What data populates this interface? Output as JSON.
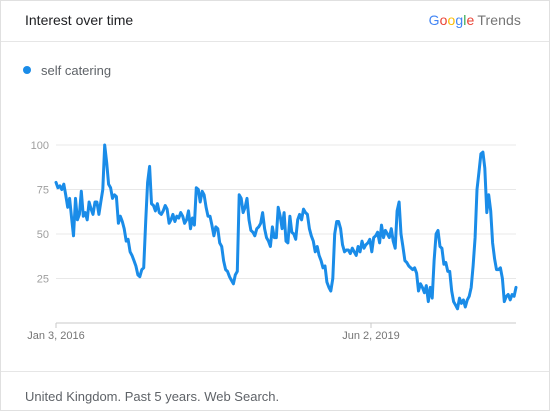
{
  "header": {
    "title": "Interest over time",
    "brand": {
      "letters": [
        {
          "ch": "G",
          "color": "#4285F4"
        },
        {
          "ch": "o",
          "color": "#EA4335"
        },
        {
          "ch": "o",
          "color": "#FBBC05"
        },
        {
          "ch": "g",
          "color": "#4285F4"
        },
        {
          "ch": "l",
          "color": "#34A853"
        },
        {
          "ch": "e",
          "color": "#EA4335"
        }
      ],
      "suffix": "Trends"
    }
  },
  "footer": {
    "text": "United Kingdom. Past 5 years. Web Search."
  },
  "chart_data": {
    "type": "line",
    "x_tick_labels": [
      "Jan 3, 2016",
      "Jun 2, 2019"
    ],
    "y_ticks": [
      25,
      50,
      75,
      100
    ],
    "ylim": [
      0,
      100
    ],
    "grid": true,
    "legend_position": "top-left",
    "series": [
      {
        "name": "self catering",
        "color": "#1a8ce8",
        "values": [
          79,
          76,
          77,
          75,
          78,
          72,
          65,
          70,
          59,
          49,
          70,
          58,
          61,
          74,
          60,
          62,
          58,
          68,
          64,
          61,
          68,
          68,
          61,
          68,
          75,
          100,
          90,
          78,
          76,
          70,
          72,
          71,
          56,
          60,
          57,
          53,
          46,
          47,
          40,
          38,
          35,
          32,
          27,
          26,
          30,
          31,
          57,
          79,
          88,
          67,
          66,
          63,
          67,
          62,
          61,
          63,
          66,
          64,
          56,
          58,
          61,
          57,
          60,
          59,
          62,
          60,
          56,
          58,
          63,
          53,
          59,
          55,
          76,
          75,
          68,
          74,
          72,
          65,
          60,
          60,
          55,
          49,
          54,
          53,
          45,
          43,
          35,
          30,
          29,
          26,
          24,
          22,
          27,
          29,
          72,
          70,
          62,
          65,
          70,
          58,
          52,
          51,
          49,
          53,
          54,
          56,
          62,
          53,
          48,
          46,
          43,
          54,
          48,
          48,
          65,
          60,
          53,
          62,
          46,
          45,
          60,
          51,
          50,
          47,
          58,
          61,
          58,
          64,
          62,
          61,
          53,
          49,
          46,
          40,
          43,
          38,
          35,
          31,
          32,
          23,
          20,
          18,
          25,
          50,
          57,
          57,
          53,
          44,
          40,
          41,
          41,
          39,
          42,
          40,
          38,
          43,
          40,
          46,
          42,
          44,
          45,
          47,
          40,
          48,
          49,
          51,
          45,
          55,
          48,
          52,
          50,
          48,
          53,
          46,
          42,
          63,
          68,
          50,
          43,
          35,
          34,
          32,
          31,
          30,
          31,
          28,
          18,
          22,
          20,
          17,
          21,
          12,
          20,
          14,
          35,
          50,
          52,
          43,
          42,
          33,
          34,
          29,
          29,
          18,
          12,
          10,
          8,
          14,
          11,
          13,
          9,
          13,
          15,
          20,
          32,
          48,
          75,
          85,
          95,
          96,
          87,
          62,
          72,
          63,
          45,
          36,
          30,
          30,
          31,
          25,
          12,
          15,
          16,
          13,
          16,
          15,
          20
        ]
      }
    ]
  }
}
